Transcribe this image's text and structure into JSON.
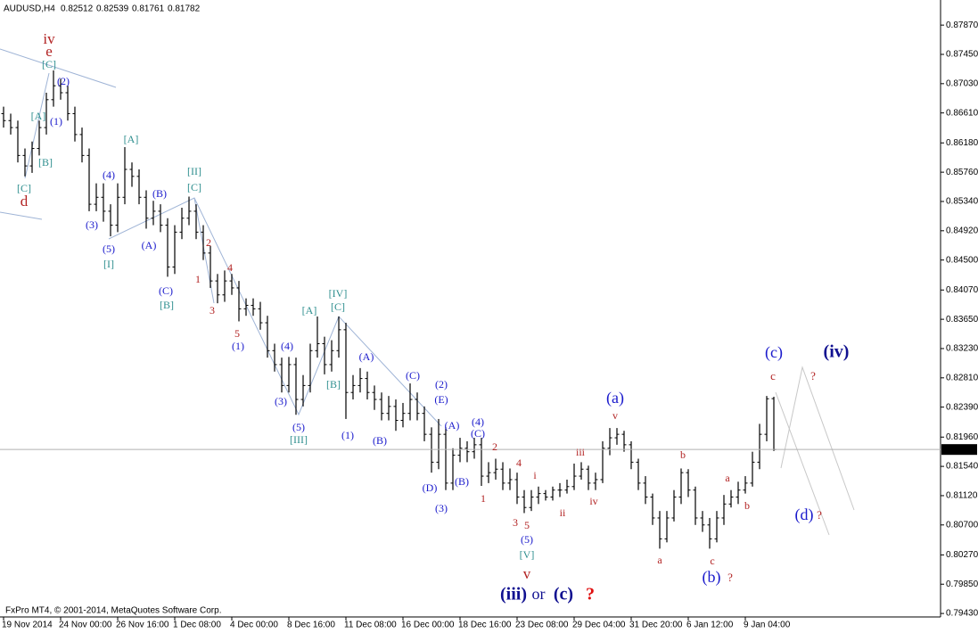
{
  "chart_data": {
    "type": "ohlc",
    "title": "AUDUSD,H4",
    "color": "#000000",
    "grid": false,
    "footer": "FxPro MT4, © 2001-2014, MetaQuotes Software Corp.",
    "xlim": [
      -0.5,
      131.375
    ],
    "ylim": [
      0.7938,
      0.8823
    ],
    "xticks": [
      {
        "value": 0,
        "label": "19 Nov 2014"
      },
      {
        "value": 8,
        "label": "24 Nov 00:00"
      },
      {
        "value": 16,
        "label": "26 Nov 16:00"
      },
      {
        "value": 24,
        "label": "1 Dec 08:00"
      },
      {
        "value": 32,
        "label": "4 Dec 00:00"
      },
      {
        "value": 40,
        "label": "8 Dec 16:00"
      },
      {
        "value": 48,
        "label": "11 Dec 08:00"
      },
      {
        "value": 56,
        "label": "16 Dec 00:00"
      },
      {
        "value": 64,
        "label": "18 Dec 16:00"
      },
      {
        "value": 72,
        "label": "23 Dec 08:00"
      },
      {
        "value": 80,
        "label": "29 Dec 04:00"
      },
      {
        "value": 88,
        "label": "31 Dec 20:00"
      },
      {
        "value": 96,
        "label": "6 Jan 12:00"
      },
      {
        "value": 104,
        "label": "9 Jan 04:00"
      }
    ],
    "yticks": [
      {
        "value": 0.8787,
        "label": "0.87870"
      },
      {
        "value": 0.8745,
        "label": "0.87450"
      },
      {
        "value": 0.8703,
        "label": "0.87030"
      },
      {
        "value": 0.8661,
        "label": "0.86610"
      },
      {
        "value": 0.8618,
        "label": "0.86180"
      },
      {
        "value": 0.8576,
        "label": "0.85760"
      },
      {
        "value": 0.8534,
        "label": "0.85340"
      },
      {
        "value": 0.8492,
        "label": "0.84920"
      },
      {
        "value": 0.845,
        "label": "0.84500"
      },
      {
        "value": 0.8407,
        "label": "0.84070"
      },
      {
        "value": 0.8365,
        "label": "0.83650"
      },
      {
        "value": 0.8323,
        "label": "0.83230"
      },
      {
        "value": 0.8281,
        "label": "0.82810"
      },
      {
        "value": 0.8239,
        "label": "0.82390"
      },
      {
        "value": 0.8196,
        "label": "0.81960"
      },
      {
        "value": 0.8154,
        "label": "0.81540"
      },
      {
        "value": 0.8112,
        "label": "0.81120"
      },
      {
        "value": 0.807,
        "label": "0.80700"
      },
      {
        "value": 0.8027,
        "label": "0.80270"
      },
      {
        "value": 0.7985,
        "label": "0.79850"
      },
      {
        "value": 0.7943,
        "label": "0.79430"
      }
    ],
    "open": [
      0.866,
      0.865,
      0.864,
      0.86,
      0.8585,
      0.861,
      0.864,
      0.868,
      0.87,
      0.869,
      0.866,
      0.863,
      0.86,
      0.853,
      0.854,
      0.852,
      0.85,
      0.854,
      0.858,
      0.857,
      0.854,
      0.851,
      0.852,
      0.85,
      0.844,
      0.849,
      0.851,
      0.852,
      0.849,
      0.846,
      0.842,
      0.84,
      0.842,
      0.841,
      0.838,
      0.8385,
      0.838,
      0.836,
      0.832,
      0.83,
      0.827,
      0.83,
      0.825,
      0.827,
      0.832,
      0.833,
      0.83,
      0.832,
      0.835,
      0.826,
      0.827,
      0.828,
      0.826,
      0.825,
      0.823,
      0.824,
      0.822,
      0.823,
      0.825,
      0.823,
      0.82,
      0.816,
      0.82,
      0.813,
      0.817,
      0.818,
      0.8175,
      0.8185,
      0.814,
      0.8145,
      0.815,
      0.813,
      0.8135,
      0.811,
      0.8095,
      0.811,
      0.8115,
      0.811,
      0.812,
      0.812,
      0.8125,
      0.814,
      0.815,
      0.813,
      0.8135,
      0.818,
      0.8195,
      0.82,
      0.8185,
      0.816,
      0.813,
      0.811,
      0.808,
      0.805,
      0.808,
      0.811,
      0.8145,
      0.812,
      0.808,
      0.807,
      0.805,
      0.808,
      0.81,
      0.811,
      0.812,
      0.813,
      0.816,
      0.82,
      0.82512
    ],
    "high": [
      0.867,
      0.866,
      0.865,
      0.861,
      0.862,
      0.865,
      0.869,
      0.8722,
      0.871,
      0.87,
      0.867,
      0.864,
      0.861,
      0.856,
      0.856,
      0.853,
      0.856,
      0.8612,
      0.859,
      0.858,
      0.855,
      0.8535,
      0.853,
      0.851,
      0.85,
      0.8525,
      0.8541,
      0.853,
      0.85,
      0.847,
      0.843,
      0.8435,
      0.843,
      0.842,
      0.8395,
      0.8395,
      0.839,
      0.837,
      0.833,
      0.831,
      0.8311,
      0.831,
      0.8285,
      0.833,
      0.8369,
      0.834,
      0.8335,
      0.8369,
      0.836,
      0.8285,
      0.8295,
      0.829,
      0.827,
      0.826,
      0.8255,
      0.825,
      0.8245,
      0.8273,
      0.826,
      0.824,
      0.821,
      0.8222,
      0.821,
      0.818,
      0.8195,
      0.819,
      0.8195,
      0.8195,
      0.816,
      0.8165,
      0.816,
      0.8151,
      0.8145,
      0.812,
      0.812,
      0.8125,
      0.812,
      0.8125,
      0.813,
      0.8135,
      0.8158,
      0.816,
      0.8155,
      0.8145,
      0.819,
      0.8209,
      0.8209,
      0.8205,
      0.819,
      0.8165,
      0.814,
      0.8115,
      0.809,
      0.809,
      0.812,
      0.8151,
      0.815,
      0.8125,
      0.809,
      0.808,
      0.809,
      0.8113,
      0.812,
      0.8132,
      0.814,
      0.8175,
      0.8215,
      0.8255,
      0.82539
    ],
    "low": [
      0.864,
      0.863,
      0.859,
      0.857,
      0.8575,
      0.86,
      0.863,
      0.867,
      0.868,
      0.865,
      0.862,
      0.859,
      0.852,
      0.852,
      0.8505,
      0.8484,
      0.849,
      0.853,
      0.8555,
      0.853,
      0.8495,
      0.85,
      0.849,
      0.8426,
      0.843,
      0.848,
      0.85,
      0.848,
      0.845,
      0.841,
      0.8388,
      0.839,
      0.84,
      0.8362,
      0.837,
      0.837,
      0.835,
      0.831,
      0.829,
      0.826,
      0.826,
      0.8228,
      0.824,
      0.826,
      0.831,
      0.8286,
      0.829,
      0.831,
      0.8222,
      0.825,
      0.826,
      0.825,
      0.8235,
      0.822,
      0.822,
      0.8205,
      0.821,
      0.822,
      0.822,
      0.819,
      0.8145,
      0.815,
      0.812,
      0.812,
      0.816,
      0.816,
      0.8165,
      0.8126,
      0.813,
      0.8135,
      0.812,
      0.812,
      0.81,
      0.8087,
      0.809,
      0.81,
      0.8105,
      0.8105,
      0.811,
      0.8115,
      0.812,
      0.8135,
      0.812,
      0.812,
      0.813,
      0.817,
      0.8185,
      0.8175,
      0.815,
      0.812,
      0.81,
      0.807,
      0.8036,
      0.8045,
      0.8075,
      0.81,
      0.811,
      0.807,
      0.806,
      0.8036,
      0.8045,
      0.807,
      0.8095,
      0.81,
      0.8115,
      0.8125,
      0.815,
      0.819,
      0.81761
    ],
    "close": [
      0.865,
      0.864,
      0.86,
      0.8585,
      0.861,
      0.864,
      0.868,
      0.87,
      0.869,
      0.866,
      0.863,
      0.86,
      0.853,
      0.854,
      0.852,
      0.85,
      0.854,
      0.858,
      0.857,
      0.854,
      0.851,
      0.852,
      0.85,
      0.844,
      0.849,
      0.851,
      0.852,
      0.849,
      0.846,
      0.842,
      0.84,
      0.842,
      0.841,
      0.838,
      0.8385,
      0.838,
      0.836,
      0.832,
      0.83,
      0.827,
      0.83,
      0.825,
      0.827,
      0.832,
      0.833,
      0.83,
      0.832,
      0.835,
      0.826,
      0.827,
      0.828,
      0.826,
      0.825,
      0.823,
      0.824,
      0.822,
      0.823,
      0.825,
      0.823,
      0.82,
      0.816,
      0.82,
      0.813,
      0.817,
      0.818,
      0.8175,
      0.8185,
      0.814,
      0.8145,
      0.815,
      0.813,
      0.8135,
      0.811,
      0.8095,
      0.811,
      0.8115,
      0.811,
      0.812,
      0.812,
      0.8125,
      0.814,
      0.815,
      0.813,
      0.8135,
      0.818,
      0.8195,
      0.82,
      0.8185,
      0.816,
      0.813,
      0.811,
      0.808,
      0.805,
      0.808,
      0.811,
      0.8145,
      0.812,
      0.808,
      0.807,
      0.805,
      0.808,
      0.81,
      0.811,
      0.812,
      0.813,
      0.816,
      0.82,
      0.8251,
      0.81782
    ],
    "annotations": [
      {
        "text": "iv",
        "color": "#b22222"
      },
      {
        "text": "e",
        "color": "#b22222"
      },
      {
        "text": "[C]",
        "color": "#2f8f8f"
      },
      {
        "text": "(2)",
        "color": "#1a1acc"
      },
      {
        "text": "[A]",
        "color": "#2f8f8f"
      },
      {
        "text": "(1)",
        "color": "#1a1acc"
      },
      {
        "text": "[B]",
        "color": "#2f8f8f"
      },
      {
        "text": "[C]",
        "color": "#2f8f8f"
      },
      {
        "text": "d",
        "color": "#b22222"
      },
      {
        "text": "[A]",
        "color": "#2f8f8f"
      },
      {
        "text": "(4)",
        "color": "#1a1acc"
      },
      {
        "text": "[II]",
        "color": "#2f8f8f"
      },
      {
        "text": "[C]",
        "color": "#2f8f8f"
      },
      {
        "text": "(B)",
        "color": "#1a1acc"
      },
      {
        "text": "(3)",
        "color": "#1a1acc"
      },
      {
        "text": "(5)",
        "color": "#1a1acc"
      },
      {
        "text": "[I]",
        "color": "#2f8f8f"
      },
      {
        "text": "(A)",
        "color": "#1a1acc"
      },
      {
        "text": "2",
        "color": "#b22222"
      },
      {
        "text": "4",
        "color": "#b22222"
      },
      {
        "text": "1",
        "color": "#b22222"
      },
      {
        "text": "(C)",
        "color": "#1a1acc"
      },
      {
        "text": "[B]",
        "color": "#2f8f8f"
      },
      {
        "text": "3",
        "color": "#b22222"
      },
      {
        "text": "5",
        "color": "#b22222"
      },
      {
        "text": "(1)",
        "color": "#1a1acc"
      },
      {
        "text": "[IV]",
        "color": "#2f8f8f"
      },
      {
        "text": "[C]",
        "color": "#2f8f8f"
      },
      {
        "text": "[A]",
        "color": "#2f8f8f"
      },
      {
        "text": "(4)",
        "color": "#1a1acc"
      },
      {
        "text": "(A)",
        "color": "#1a1acc"
      },
      {
        "text": "(C)",
        "color": "#1a1acc"
      },
      {
        "text": "[B]",
        "color": "#2f8f8f"
      },
      {
        "text": "(2)",
        "color": "#1a1acc"
      },
      {
        "text": "(3)",
        "color": "#1a1acc"
      },
      {
        "text": "(E)",
        "color": "#1a1acc"
      },
      {
        "text": "(5)",
        "color": "#1a1acc"
      },
      {
        "text": "[III]",
        "color": "#2f8f8f"
      },
      {
        "text": "(4)",
        "color": "#1a1acc"
      },
      {
        "text": "(A)",
        "color": "#1a1acc"
      },
      {
        "text": "(1)",
        "color": "#1a1acc"
      },
      {
        "text": "(B)",
        "color": "#1a1acc"
      },
      {
        "text": "(C)",
        "color": "#1a1acc"
      },
      {
        "text": "2",
        "color": "#b22222"
      },
      {
        "text": "4",
        "color": "#b22222"
      },
      {
        "text": "i",
        "color": "#b22222"
      },
      {
        "text": "(B)",
        "color": "#1a1acc"
      },
      {
        "text": "(D)",
        "color": "#1a1acc"
      },
      {
        "text": "1",
        "color": "#b22222"
      },
      {
        "text": "(3)",
        "color": "#1a1acc"
      },
      {
        "text": "3",
        "color": "#b22222"
      },
      {
        "text": "5",
        "color": "#b22222"
      },
      {
        "text": "ii",
        "color": "#b22222"
      },
      {
        "text": "(5)",
        "color": "#1a1acc"
      },
      {
        "text": "[V]",
        "color": "#2f8f8f"
      },
      {
        "text": "v",
        "color": "#b22222"
      },
      {
        "text": "(iii)",
        "color": "#101090"
      },
      {
        "text": "or",
        "color": "#101090"
      },
      {
        "text": "(c)",
        "color": "#101090"
      },
      {
        "text": "?",
        "color": "#e01010"
      },
      {
        "text": "iii",
        "color": "#b22222"
      },
      {
        "text": "iv",
        "color": "#b22222"
      },
      {
        "text": "(a)",
        "color": "#1a1acc"
      },
      {
        "text": "v",
        "color": "#b22222"
      },
      {
        "text": "b",
        "color": "#b22222"
      },
      {
        "text": "a",
        "color": "#b22222"
      },
      {
        "text": "b",
        "color": "#b22222"
      },
      {
        "text": "a",
        "color": "#b22222"
      },
      {
        "text": "c",
        "color": "#b22222"
      },
      {
        "text": "(b)",
        "color": "#1a1acc"
      },
      {
        "text": "?",
        "color": "#b22222"
      },
      {
        "text": "(c)",
        "color": "#1a1acc"
      },
      {
        "text": "c",
        "color": "#b22222"
      },
      {
        "text": "(iv)",
        "color": "#101090"
      },
      {
        "text": "?",
        "color": "#b22222"
      },
      {
        "text": "(d)",
        "color": "#1a1acc"
      },
      {
        "text": "?",
        "color": "#b22222"
      }
    ]
  }
}
